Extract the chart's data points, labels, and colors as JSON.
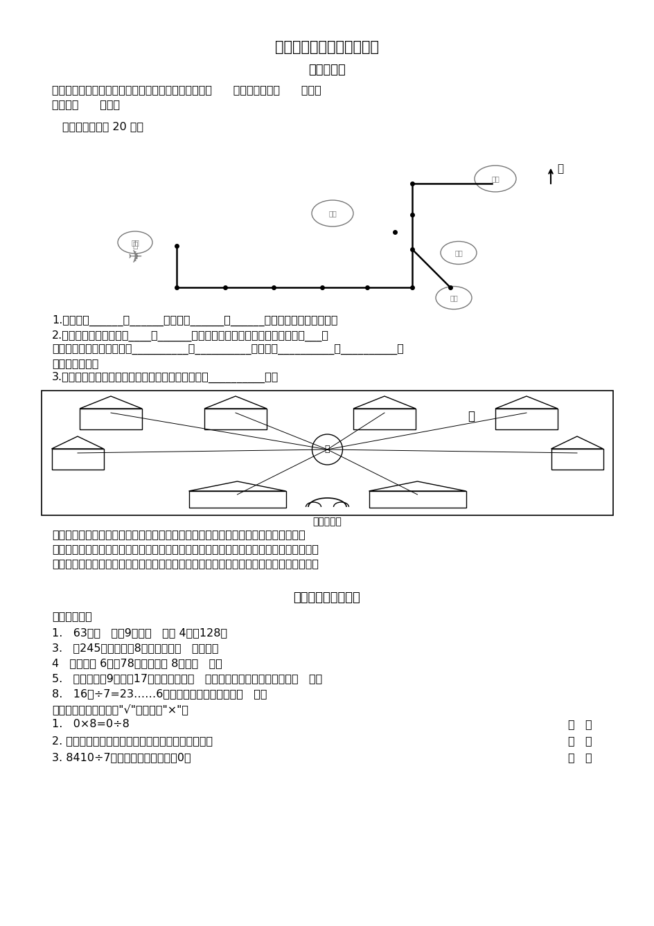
{
  "title": "三年级数学下册巩固与提高",
  "section1": "位置与方向",
  "section2": "除数是一位数的除法",
  "bg_color": "#ffffff",
  "para1_line1": "早晨同学们面向太阳举行升旗仪式，此时同学们面向（      ）面，背对着（      ）面，",
  "para1_line2": "左侧是（      ）面。",
  "para2": "送信。（每小格 20 米）",
  "q1": "1.鸽子要向______飞______米，再向______飞______米就把信送给了小松鼠。",
  "q2_line1": "2.鸽子从松鼠家出来，向____飞______米就到了兔子家，把信送给兔子后再向___飞",
  "q2_line2": "米找到大象，最后再接着向__________飞__________米，又向__________飞__________米",
  "q2_line3": "把信交给小猫。",
  "q3": "3.从鸽子开始出发，到把信全部送完，在路上共飞了__________米。",
  "zoo_label": "动物园大门",
  "water_label": "水",
  "north_label": "北",
  "zoo_text_line1": "星期天，我们去动物园游玩，走进动物园大门，正北面有狮子馆和河马馆，熊猫馆在狮",
  "zoo_text_line2": "子馆的西北面，飞禽馆在狮子馆的东北面，经过熊猫馆向南走，可到达猴山和大象馆，经过",
  "zoo_text_line3": "猴山向东走到达狮子馆和金鱼馆，经过金鱼馆向南走到达骆驼馆，你能填出它们的位置吗？",
  "section2_intro": "请你填一填。",
  "fq1": "1.   63是（   ）的9倍，（   ）的 4倍是128。",
  "fq2": "3.   从245里连续减去8，最多能减（   ）几次。",
  "fq3": "4   一个数的 6倍是78，这个数的 8倍是（   ）。",
  "fq4": "5.   一个数除以9，商是17，余数最大是（   ），当余数最大时，被除数是（   ）。",
  "fq5": "8.   16口÷7=23……6。这道算式中，口里应填（   ）。",
  "judge_intro": "对错我判断。（对的打\"√\"，错的打\"×\"）",
  "jq1": "1.   0×8=0÷8",
  "jq2": "2. 一个三位数除以一个一位数，商不一定是三位数。",
  "jq3": "3. 8410÷7，商的末尾一定有一个0。"
}
